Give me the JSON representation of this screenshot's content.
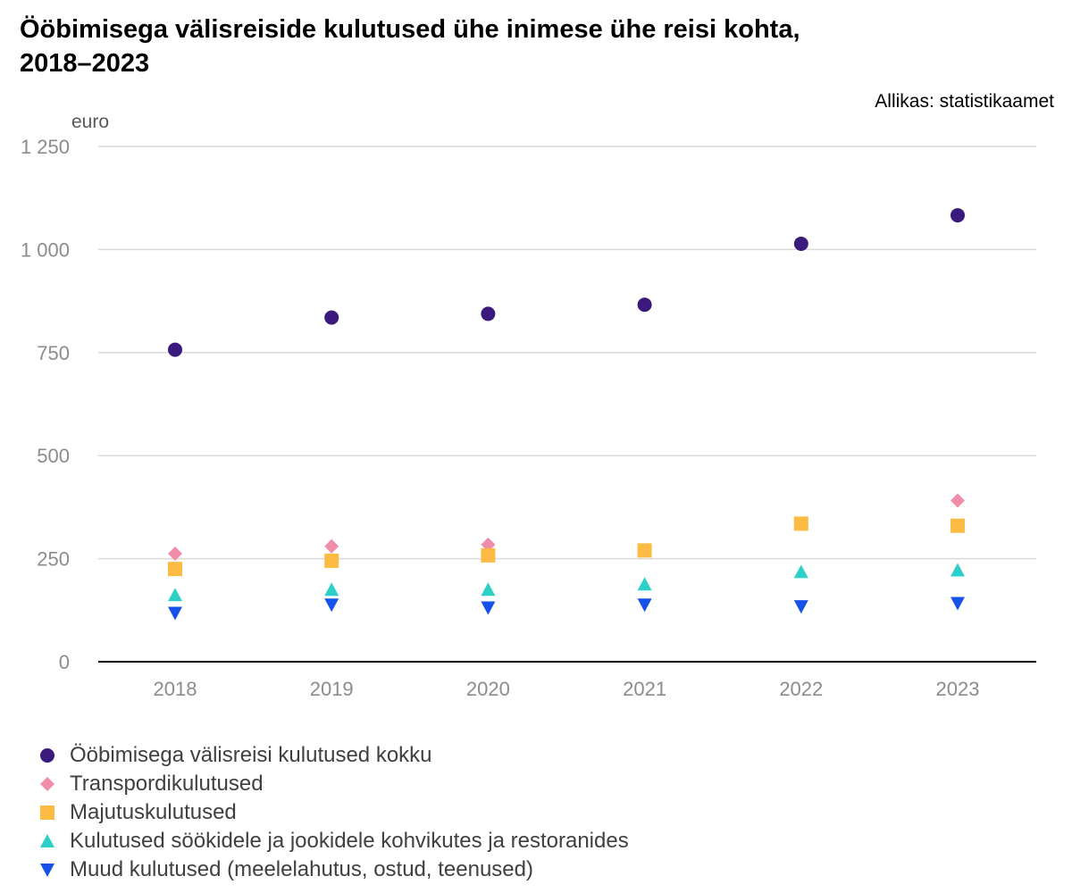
{
  "title_line1": "Ööbimisega välisreiside kulutused ühe inimese ühe reisi kohta,",
  "title_line2": "2018–2023",
  "source": "Allikas: statistikaamet",
  "chart_data": {
    "type": "scatter",
    "title": "Ööbimisega välisreiside kulutused ühe inimese ühe reisi kohta, 2018–2023",
    "ylabel": "euro",
    "xlabel": "",
    "categories": [
      "2018",
      "2019",
      "2020",
      "2021",
      "2022",
      "2023"
    ],
    "ylim": [
      0,
      1250
    ],
    "yticks": [
      0,
      250,
      500,
      750,
      1000,
      1250
    ],
    "ytick_labels": [
      "0",
      "250",
      "500",
      "750",
      "1 000",
      "1 250"
    ],
    "grid": true,
    "legend_position": "bottom",
    "series": [
      {
        "name": "Ööbimisega välisreisi kulutused kokku",
        "marker": "circle",
        "color": "#3b1a7e",
        "values": [
          757,
          835,
          844,
          866,
          1014,
          1083
        ]
      },
      {
        "name": "Transpordikulutused",
        "marker": "diamond",
        "color": "#f08da8",
        "values": [
          262,
          280,
          284,
          270,
          335,
          391
        ]
      },
      {
        "name": "Majutuskulutused",
        "marker": "square",
        "color": "#fcbb43",
        "values": [
          225,
          245,
          258,
          270,
          335,
          330
        ]
      },
      {
        "name": "Kulutused söökidele ja jookidele kohvikutes ja restoranides",
        "marker": "triangle-up",
        "color": "#2dd0c7",
        "values": [
          162,
          175,
          175,
          188,
          218,
          222
        ]
      },
      {
        "name": "Muud kulutused (meelelahutus, ostud, teenused)",
        "marker": "triangle-down",
        "color": "#1652e8",
        "values": [
          118,
          138,
          131,
          138,
          134,
          142
        ]
      }
    ]
  }
}
